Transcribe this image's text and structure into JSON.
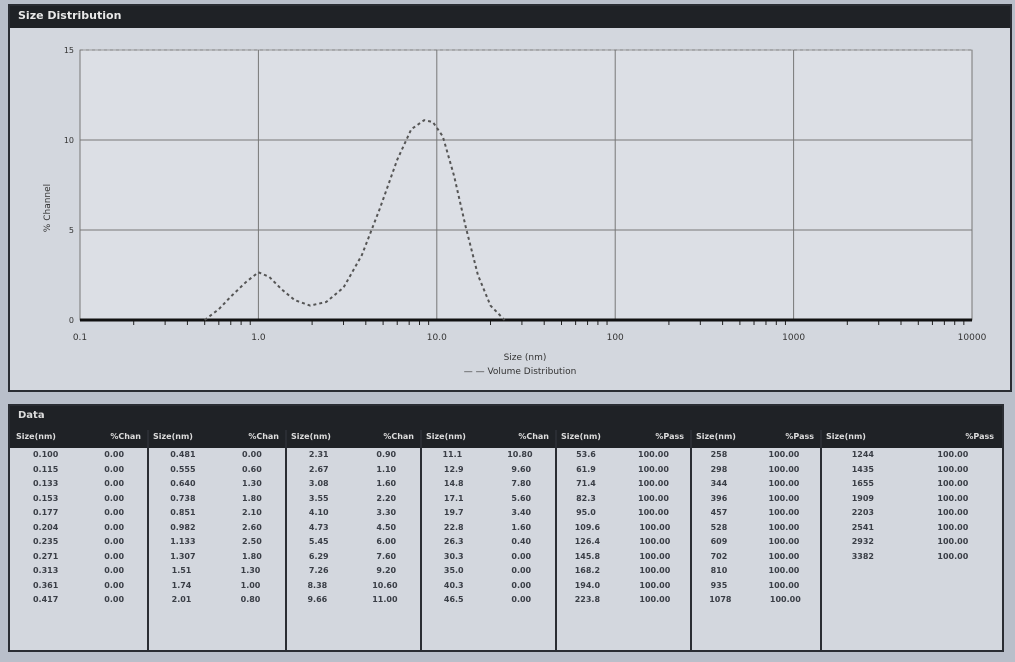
{
  "chart_panel": {
    "title": "Size Distribution"
  },
  "chart_data": {
    "type": "line",
    "title": "",
    "xlabel": "Size (nm)",
    "ylabel": "% Channel",
    "xscale": "log",
    "xlim": [
      0.1,
      10000
    ],
    "ylim": [
      0,
      15
    ],
    "xticks": [
      "0.1",
      "1.0",
      "10.0",
      "100",
      "1000",
      "10000"
    ],
    "yticks": [
      "0",
      "5",
      "10",
      "15"
    ],
    "grid": true,
    "legend_text": "— — Volume Distribution",
    "series": [
      {
        "x": [
          0.5,
          0.6,
          0.7,
          0.85,
          1.0,
          1.15,
          1.35,
          1.6,
          1.95,
          2.4,
          3.0,
          3.8,
          4.8,
          6.0,
          7.2,
          8.5,
          9.5,
          10.8,
          12.5,
          14.5,
          17,
          20,
          24
        ],
        "y": [
          0,
          0.6,
          1.3,
          2.1,
          2.65,
          2.4,
          1.7,
          1.1,
          0.8,
          1.0,
          1.8,
          3.6,
          6.2,
          8.9,
          10.6,
          11.1,
          11.0,
          10.2,
          8.0,
          5.2,
          2.5,
          0.8,
          0
        ]
      }
    ]
  },
  "table": {
    "title": "Data",
    "groups": [
      {
        "h": [
          "Size(nm)",
          "%Chan"
        ],
        "rows": [
          [
            "0.100",
            "0.00"
          ],
          [
            "0.115",
            "0.00"
          ],
          [
            "0.133",
            "0.00"
          ],
          [
            "0.153",
            "0.00"
          ],
          [
            "0.177",
            "0.00"
          ],
          [
            "0.204",
            "0.00"
          ],
          [
            "0.235",
            "0.00"
          ],
          [
            "0.271",
            "0.00"
          ],
          [
            "0.313",
            "0.00"
          ],
          [
            "0.361",
            "0.00"
          ],
          [
            "0.417",
            "0.00"
          ]
        ]
      },
      {
        "h": [
          "Size(nm)",
          "%Chan"
        ],
        "rows": [
          [
            "0.481",
            "0.00"
          ],
          [
            "0.555",
            "0.60"
          ],
          [
            "0.640",
            "1.30"
          ],
          [
            "0.738",
            "1.80"
          ],
          [
            "0.851",
            "2.10"
          ],
          [
            "0.982",
            "2.60"
          ],
          [
            "1.133",
            "2.50"
          ],
          [
            "1.307",
            "1.80"
          ],
          [
            "1.51",
            "1.30"
          ],
          [
            "1.74",
            "1.00"
          ],
          [
            "2.01",
            "0.80"
          ]
        ]
      },
      {
        "h": [
          "Size(nm)",
          "%Chan"
        ],
        "rows": [
          [
            "2.31",
            "0.90"
          ],
          [
            "2.67",
            "1.10"
          ],
          [
            "3.08",
            "1.60"
          ],
          [
            "3.55",
            "2.20"
          ],
          [
            "4.10",
            "3.30"
          ],
          [
            "4.73",
            "4.50"
          ],
          [
            "5.45",
            "6.00"
          ],
          [
            "6.29",
            "7.60"
          ],
          [
            "7.26",
            "9.20"
          ],
          [
            "8.38",
            "10.60"
          ],
          [
            "9.66",
            "11.00"
          ]
        ]
      },
      {
        "h": [
          "Size(nm)",
          "%Chan"
        ],
        "rows": [
          [
            "11.1",
            "10.80"
          ],
          [
            "12.9",
            "9.60"
          ],
          [
            "14.8",
            "7.80"
          ],
          [
            "17.1",
            "5.60"
          ],
          [
            "19.7",
            "3.40"
          ],
          [
            "22.8",
            "1.60"
          ],
          [
            "26.3",
            "0.40"
          ],
          [
            "30.3",
            "0.00"
          ],
          [
            "35.0",
            "0.00"
          ],
          [
            "40.3",
            "0.00"
          ],
          [
            "46.5",
            "0.00"
          ]
        ]
      },
      {
        "h": [
          "Size(nm)",
          "%Pass"
        ],
        "rows": [
          [
            "53.6",
            "100.00"
          ],
          [
            "61.9",
            "100.00"
          ],
          [
            "71.4",
            "100.00"
          ],
          [
            "82.3",
            "100.00"
          ],
          [
            "95.0",
            "100.00"
          ],
          [
            "109.6",
            "100.00"
          ],
          [
            "126.4",
            "100.00"
          ],
          [
            "145.8",
            "100.00"
          ],
          [
            "168.2",
            "100.00"
          ],
          [
            "194.0",
            "100.00"
          ],
          [
            "223.8",
            "100.00"
          ]
        ]
      },
      {
        "h": [
          "Size(nm)",
          "%Pass"
        ],
        "rows": [
          [
            "258",
            "100.00"
          ],
          [
            "298",
            "100.00"
          ],
          [
            "344",
            "100.00"
          ],
          [
            "396",
            "100.00"
          ],
          [
            "457",
            "100.00"
          ],
          [
            "528",
            "100.00"
          ],
          [
            "609",
            "100.00"
          ],
          [
            "702",
            "100.00"
          ],
          [
            "810",
            "100.00"
          ],
          [
            "935",
            "100.00"
          ],
          [
            "1078",
            "100.00"
          ]
        ]
      },
      {
        "h": [
          "Size(nm)",
          "%Pass"
        ],
        "rows": [
          [
            "1244",
            "100.00"
          ],
          [
            "1435",
            "100.00"
          ],
          [
            "1655",
            "100.00"
          ],
          [
            "1909",
            "100.00"
          ],
          [
            "2203",
            "100.00"
          ],
          [
            "2541",
            "100.00"
          ],
          [
            "2932",
            "100.00"
          ],
          [
            "3382",
            "100.00"
          ]
        ]
      }
    ]
  }
}
